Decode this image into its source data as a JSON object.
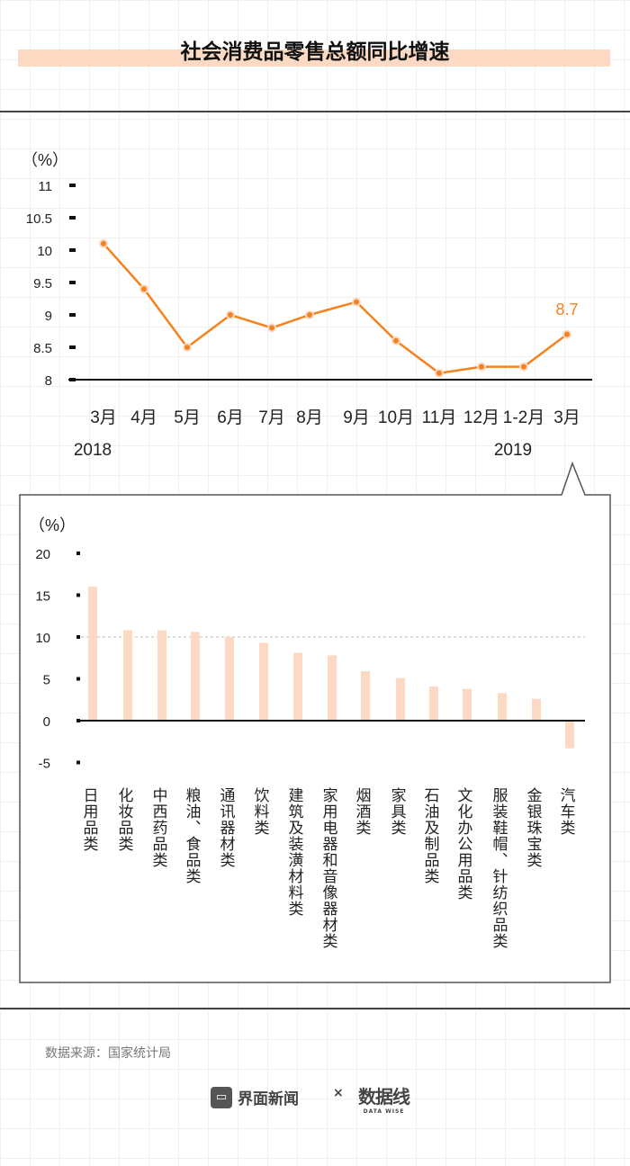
{
  "title": "社会消费品零售总额同比增速",
  "source": "数据来源：国家统计局",
  "logos": {
    "jiemian": "界面新闻",
    "times": "×",
    "datawise": "数据线",
    "datawise_sub": "DATA WISE"
  },
  "chart_data": [
    {
      "type": "line",
      "unit": "（%）",
      "ylim": [
        8,
        11
      ],
      "yticks": [
        "8",
        "8.5",
        "9",
        "9.5",
        "10",
        "10.5",
        "11"
      ],
      "categories": [
        "3月",
        "4月",
        "5月",
        "6月",
        "7月",
        "8月",
        "9月",
        "10月",
        "11月",
        "12月",
        "1-2月",
        "3月"
      ],
      "years": [
        {
          "label": "2018",
          "at": 0
        },
        {
          "label": "2019",
          "at": 10
        }
      ],
      "values": [
        10.1,
        9.4,
        8.5,
        9.0,
        8.8,
        9.0,
        9.2,
        8.6,
        8.1,
        8.2,
        8.2,
        8.7
      ],
      "annotation": "8.7",
      "color": "#f5821f"
    },
    {
      "type": "bar",
      "unit": "（%）",
      "ylim": [
        -5,
        20
      ],
      "yticks": [
        "-5",
        "0",
        "5",
        "10",
        "15",
        "20"
      ],
      "reference_line": 10,
      "categories": [
        "日用品类",
        "化妆品类",
        "中西药品类",
        "粮油、食品类",
        "通讯器材类",
        "饮料类",
        "建筑及装潢材料类",
        "家用电器和音像器材类",
        "烟酒类",
        "家具类",
        "石油及制品类",
        "文化办公用品类",
        "服装鞋帽、针纺织品类",
        "金银珠宝类",
        "汽车类"
      ],
      "values": [
        16.0,
        10.8,
        10.8,
        10.6,
        10.0,
        9.3,
        8.1,
        7.8,
        5.9,
        5.1,
        4.1,
        3.8,
        3.3,
        2.6,
        -3.3
      ],
      "color": "#fcd9c2"
    }
  ]
}
